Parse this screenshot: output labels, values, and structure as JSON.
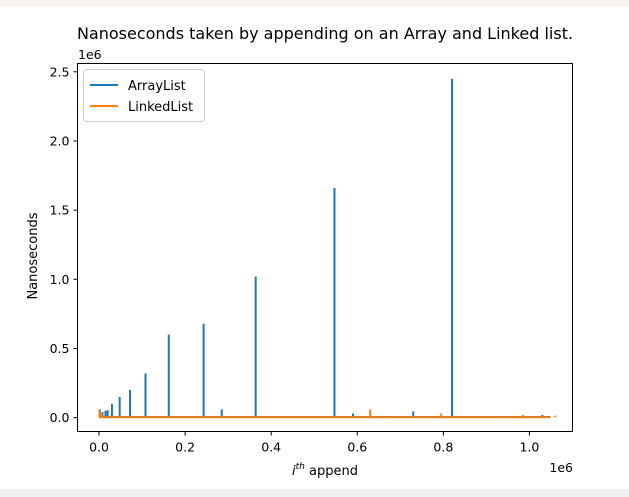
{
  "chart_data": {
    "type": "line",
    "title": "Nanoseconds taken by appending on an Array and Linked list.",
    "xlabel_sup": "th",
    "xlabel_rest": " append",
    "ylabel": "Nanoseconds",
    "x_offset_text": "1e6",
    "y_offset_text": "1e6",
    "xlim": [
      -50000,
      1100000
    ],
    "ylim": [
      -100000,
      2560000
    ],
    "x_scale": 1000000,
    "y_scale": 1000000,
    "xticks": [
      0,
      200000,
      400000,
      600000,
      800000,
      1000000
    ],
    "xtick_labels": [
      "0.0",
      "0.2",
      "0.4",
      "0.6",
      "0.8",
      "1.0"
    ],
    "yticks": [
      0,
      500000,
      1000000,
      1500000,
      2000000,
      2500000
    ],
    "ytick_labels": [
      "0.0",
      "0.5",
      "1.0",
      "1.5",
      "2.0",
      "2.5"
    ],
    "legend_position": "upper-left",
    "series": [
      {
        "name": "ArrayList",
        "color": "#1f77b4",
        "baseline": 5000,
        "x_max": 1048576,
        "spikes": [
          [
            2000,
            60000
          ],
          [
            8000,
            40000
          ],
          [
            15000,
            50000
          ],
          [
            20000,
            55000
          ],
          [
            30000,
            100000
          ],
          [
            48000,
            150000
          ],
          [
            72000,
            200000
          ],
          [
            108000,
            320000
          ],
          [
            162000,
            600000
          ],
          [
            243000,
            680000
          ],
          [
            285000,
            60000
          ],
          [
            364000,
            1020000
          ],
          [
            547000,
            1660000
          ],
          [
            820000,
            2450000
          ],
          [
            590000,
            30000
          ],
          [
            730000,
            45000
          ],
          [
            1030000,
            20000
          ]
        ]
      },
      {
        "name": "LinkedList",
        "color": "#ff7f0e",
        "baseline": 3000,
        "x_max": 1048576,
        "spikes": [
          [
            1000,
            60000
          ],
          [
            6000,
            30000
          ],
          [
            630000,
            60000
          ],
          [
            795000,
            30000
          ],
          [
            985000,
            20000
          ],
          [
            1060000,
            15000
          ]
        ]
      }
    ]
  }
}
